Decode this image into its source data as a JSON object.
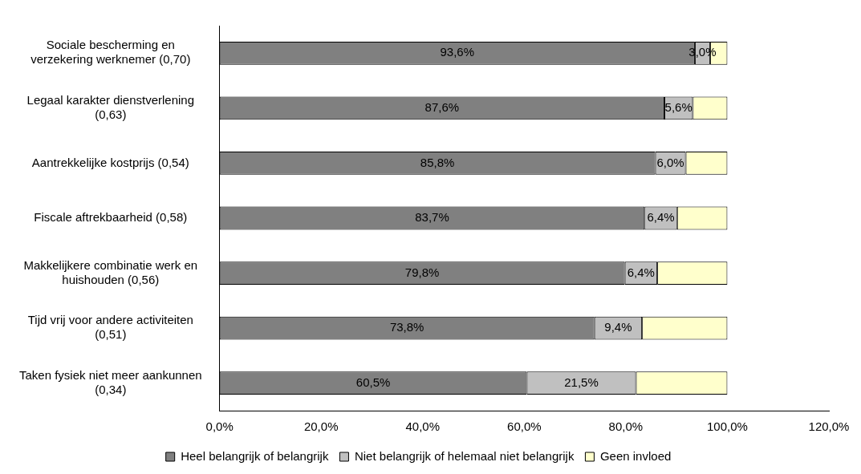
{
  "chart_data": {
    "type": "bar",
    "orientation": "horizontal",
    "stacked": true,
    "categories": [
      "Sociale bescherming en verzekering werknemer (0,70)",
      "Legaal karakter dienstverlening (0,63)",
      "Aantrekkelijke kostprijs (0,54)",
      "Fiscale aftrekbaarheid (0,58)",
      "Makkelijkere combinatie werk en huishouden (0,56)",
      "Tijd vrij voor andere activiteiten (0,51)",
      "Taken fysiek niet meer aankunnen (0,34)"
    ],
    "series": [
      {
        "name": "Heel belangrijk of belangrijk",
        "color": "#808080",
        "values": [
          93.6,
          87.6,
          85.8,
          83.7,
          79.8,
          73.8,
          60.5
        ],
        "value_labels": [
          "93,6%",
          "87,6%",
          "85,8%",
          "83,7%",
          "79,8%",
          "73,8%",
          "60,5%"
        ]
      },
      {
        "name": "Niet belangrijk of helemaal niet belangrijk",
        "color": "#c0c0c0",
        "values": [
          3.0,
          5.6,
          6.0,
          6.4,
          6.4,
          9.4,
          21.5
        ],
        "value_labels": [
          "3,0%",
          "5,6%",
          "6,0%",
          "6,4%",
          "6,4%",
          "9,4%",
          "21,5%"
        ]
      },
      {
        "name": "Geen invloed",
        "color": "#ffffcc",
        "values": [
          3.4,
          6.8,
          8.2,
          9.9,
          13.8,
          16.8,
          18.0
        ]
      }
    ],
    "xlim": [
      0,
      120
    ],
    "xticks": [
      {
        "value": 0,
        "label": "0,0%"
      },
      {
        "value": 20,
        "label": "20,0%"
      },
      {
        "value": 40,
        "label": "40,0%"
      },
      {
        "value": 60,
        "label": "60,0%"
      },
      {
        "value": 80,
        "label": "80,0%"
      },
      {
        "value": 100,
        "label": "100,0%"
      },
      {
        "value": 120,
        "label": "120,0%"
      }
    ],
    "grid": false,
    "legend": "bottom"
  }
}
